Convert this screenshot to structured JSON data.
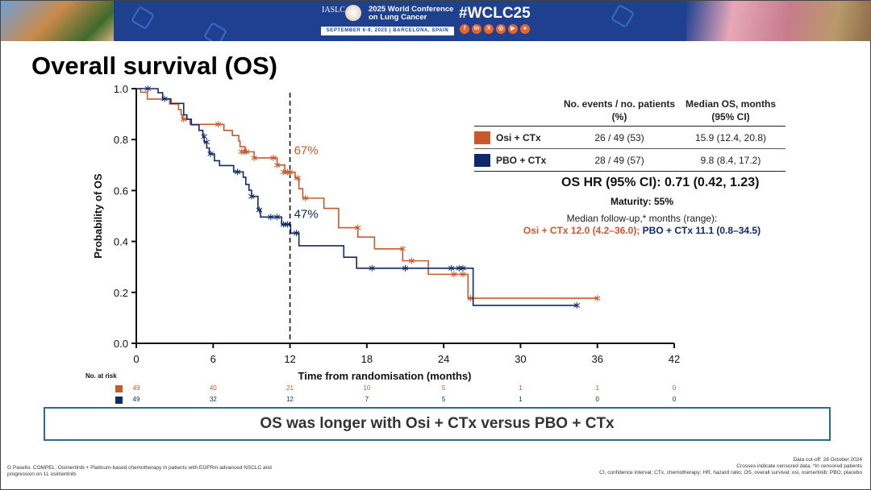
{
  "header": {
    "org": "IASLC",
    "conference": "2025 World Conference on Lung Cancer",
    "dates": "SEPTEMBER 6-9, 2025 | BARCELONA, SPAIN",
    "hashtag": "#WCLC25",
    "social_icons": [
      "facebook-icon",
      "linkedin-icon",
      "x-icon",
      "instagram-icon",
      "youtube-icon",
      "wechat-icon"
    ]
  },
  "slide_title": "Overall survival (OS)",
  "legend_table": {
    "col1": "No. events / no. patients (%)",
    "col2": "Median OS, months (95% CI)",
    "rows": [
      {
        "arm": "Osi + CTx",
        "events": "26 / 49 (53)",
        "median": "15.9 (12.4, 20.8)",
        "color": "#c8592a"
      },
      {
        "arm": "PBO + CTx",
        "events": "28 / 49 (57)",
        "median": "9.8 (8.4, 17.2)",
        "color": "#0f2a6b"
      }
    ]
  },
  "hr_text": "OS HR (95% CI): 0.71 (0.42, 1.23)",
  "maturity": "Maturity: 55%",
  "followup": {
    "label": "Median follow-up,* months (range):",
    "osi": "Osi + CTx 12.0 (4.2–36.0);",
    "pbo": "PBO + CTx 11.1 (0.8–34.5)"
  },
  "chart_data": {
    "type": "line",
    "subtype": "kaplan-meier-step",
    "xlabel": "Time from randomisation (months)",
    "ylabel": "Probability of OS",
    "xlim": [
      0,
      42
    ],
    "ylim": [
      0,
      1.0
    ],
    "xticks": [
      "0",
      "6",
      "12",
      "18",
      "24",
      "30",
      "36",
      "42"
    ],
    "yticks": [
      "0.0",
      "0.2",
      "0.4",
      "0.6",
      "0.8",
      "1.0"
    ],
    "grid": false,
    "reference_line_x": 12,
    "annotations": [
      {
        "text": "67%",
        "series": 0
      },
      {
        "text": "47%",
        "series": 1
      }
    ],
    "series": [
      {
        "name": "Osi + CTx",
        "color": "#c8592a",
        "steps": [
          [
            0,
            1.0
          ],
          [
            0.34,
            0.986
          ],
          [
            0.86,
            0.959
          ],
          [
            2.6,
            0.94
          ],
          [
            3.3,
            0.918
          ],
          [
            3.5,
            0.897
          ],
          [
            3.6,
            0.88
          ],
          [
            4.2,
            0.86
          ],
          [
            6.84,
            0.836
          ],
          [
            7.5,
            0.816
          ],
          [
            8.0,
            0.794
          ],
          [
            8.1,
            0.772
          ],
          [
            8.5,
            0.752
          ],
          [
            9.2,
            0.728
          ],
          [
            11.0,
            0.7
          ],
          [
            11.6,
            0.672
          ],
          [
            12.4,
            0.649
          ],
          [
            12.7,
            0.607
          ],
          [
            13.0,
            0.57
          ],
          [
            14.65,
            0.53
          ],
          [
            15.8,
            0.454
          ],
          [
            17.3,
            0.417
          ],
          [
            18.6,
            0.371
          ],
          [
            20.8,
            0.324
          ],
          [
            22.8,
            0.271
          ],
          [
            25.9,
            0.177
          ]
        ],
        "end": 36.0,
        "censored": [
          [
            3.7,
            0.88
          ],
          [
            6.4,
            0.86
          ],
          [
            8.2,
            0.752
          ],
          [
            8.4,
            0.752
          ],
          [
            8.6,
            0.752
          ],
          [
            9.2,
            0.728
          ],
          [
            10.7,
            0.728
          ],
          [
            11.0,
            0.7
          ],
          [
            11.5,
            0.672
          ],
          [
            11.8,
            0.672
          ],
          [
            12.0,
            0.672
          ],
          [
            12.6,
            0.649
          ],
          [
            13.2,
            0.57
          ],
          [
            17.3,
            0.454
          ],
          [
            20.8,
            0.371
          ],
          [
            21.5,
            0.324
          ],
          [
            24.8,
            0.271
          ],
          [
            25.5,
            0.271
          ],
          [
            26.1,
            0.177
          ],
          [
            36.0,
            0.177
          ]
        ]
      },
      {
        "name": "PBO + CTx",
        "color": "#0f2a6b",
        "steps": [
          [
            0,
            1.0
          ],
          [
            1.7,
            0.984
          ],
          [
            2.06,
            0.96
          ],
          [
            2.7,
            0.942
          ],
          [
            3.7,
            0.897
          ],
          [
            3.95,
            0.88
          ],
          [
            4.3,
            0.858
          ],
          [
            4.9,
            0.836
          ],
          [
            5.2,
            0.812
          ],
          [
            5.3,
            0.79
          ],
          [
            5.5,
            0.767
          ],
          [
            5.7,
            0.744
          ],
          [
            6.1,
            0.717
          ],
          [
            6.5,
            0.698
          ],
          [
            7.6,
            0.673
          ],
          [
            8.35,
            0.652
          ],
          [
            8.55,
            0.624
          ],
          [
            8.8,
            0.601
          ],
          [
            9.0,
            0.577
          ],
          [
            9.5,
            0.524
          ],
          [
            9.7,
            0.496
          ],
          [
            11.35,
            0.467
          ],
          [
            12.05,
            0.433
          ],
          [
            12.7,
            0.383
          ],
          [
            16.2,
            0.338
          ],
          [
            17.2,
            0.295
          ],
          [
            26.3,
            0.149
          ]
        ],
        "end": 34.4,
        "censored": [
          [
            0.9,
            1.0
          ],
          [
            2.2,
            0.96
          ],
          [
            5.3,
            0.812
          ],
          [
            5.5,
            0.79
          ],
          [
            5.8,
            0.744
          ],
          [
            7.9,
            0.673
          ],
          [
            9.0,
            0.577
          ],
          [
            9.6,
            0.524
          ],
          [
            10.5,
            0.496
          ],
          [
            11.0,
            0.496
          ],
          [
            11.5,
            0.467
          ],
          [
            11.8,
            0.467
          ],
          [
            12.5,
            0.433
          ],
          [
            18.4,
            0.295
          ],
          [
            21.0,
            0.295
          ],
          [
            24.6,
            0.295
          ],
          [
            25.2,
            0.295
          ],
          [
            25.5,
            0.295
          ],
          [
            34.4,
            0.149
          ]
        ]
      }
    ],
    "at_risk": {
      "label": "No. at risk",
      "times": [
        0,
        6,
        12,
        18,
        24,
        30,
        36,
        42
      ],
      "rows": [
        {
          "series": 0,
          "values": [
            "49",
            "40",
            "21",
            "10",
            "5",
            "1",
            "1",
            "0"
          ]
        },
        {
          "series": 1,
          "values": [
            "49",
            "32",
            "12",
            "7",
            "5",
            "1",
            "0",
            "0"
          ]
        }
      ]
    }
  },
  "conclusion": "OS was longer with Osi + CTx versus PBO + CTx",
  "footer": {
    "citation": "G Pasello. COMPEL: Osimertinib + Platinum-based chemotherapy in patients with EGFRm advanced NSCLC and progression on 1L osimertinib",
    "cutoff": "Data cut-off: 28 October 2024",
    "censor_note": "Crosses indicate censored data. *In censored patients",
    "abbreviations": "CI, confidence interval; CTx, chemotherapy; HR, hazard ratio; OS, overall survival; osi, osimertinib; PBO, placebo"
  }
}
